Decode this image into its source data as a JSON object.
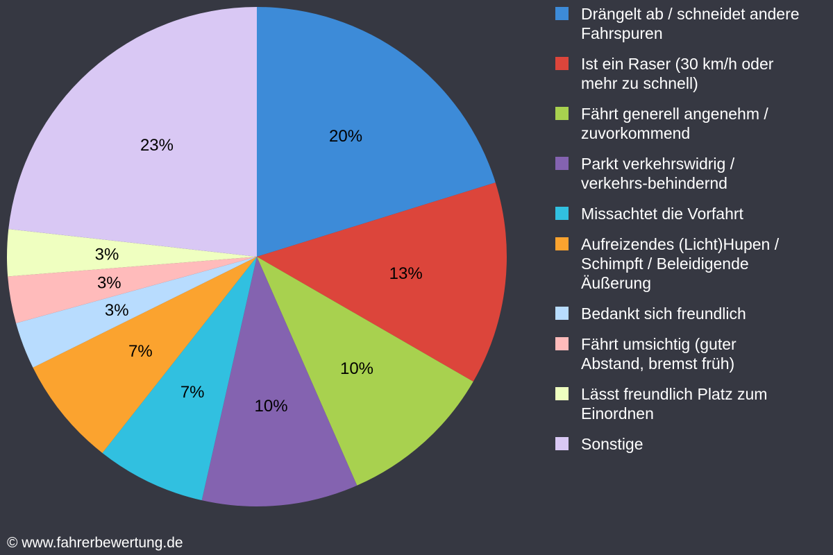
{
  "chart_data": {
    "type": "pie",
    "title": "",
    "start_angle_deg": 0,
    "direction": "clockwise",
    "categories": [
      "Drängelt ab / schneidet andere Fahrspuren",
      "Ist ein Raser (30 km/h oder mehr zu schnell)",
      "Fährt generell angenehm / zuvorkommend",
      "Parkt verkehrswidrig / verkehrs-behindernd",
      "Missachtet die Vorfahrt",
      "Aufreizendes (Licht)Hupen / Schimpft / Beleidigende Äußerung",
      "Bedankt sich freundlich",
      "Fährt umsichtig (guter Abstand, bremst früh)",
      "Lässt freundlich Platz zum Einordnen",
      "Sonstige"
    ],
    "values": [
      20,
      13,
      10,
      10,
      7,
      7,
      3,
      3,
      3,
      23
    ],
    "value_labels": [
      "20%",
      "13%",
      "10%",
      "10%",
      "7%",
      "7%",
      "3%",
      "3%",
      "3%",
      "23%"
    ],
    "colors": [
      "#3d8bd8",
      "#dc453b",
      "#a8d14f",
      "#8463b0",
      "#31c0e0",
      "#fba32f",
      "#b8dcfe",
      "#ffbbbb",
      "#efffc0",
      "#d9c8f4"
    ],
    "legend_position": "right"
  },
  "legend": {
    "items": [
      {
        "label": "Drängelt ab / schneidet andere\nFahrspuren",
        "color": "#3d8bd8"
      },
      {
        "label": "Ist ein Raser (30 km/h oder\nmehr zu schnell)",
        "color": "#dc453b"
      },
      {
        "label": "Fährt generell angenehm /\nzuvorkommend",
        "color": "#a8d14f"
      },
      {
        "label": "Parkt verkehrswidrig /\nverkehrs-behindernd",
        "color": "#8463b0"
      },
      {
        "label": "Missachtet die Vorfahrt",
        "color": "#31c0e0"
      },
      {
        "label": "Aufreizendes (Licht)Hupen /\nSchimpft / Beleidigende\nÄußerung",
        "color": "#fba32f"
      },
      {
        "label": "Bedankt sich freundlich",
        "color": "#b8dcfe"
      },
      {
        "label": "Fährt umsichtig (guter\nAbstand, bremst früh)",
        "color": "#ffbbbb"
      },
      {
        "label": "Lässt freundlich Platz zum\nEinordnen",
        "color": "#efffc0"
      },
      {
        "label": "Sonstige",
        "color": "#d9c8f4"
      }
    ]
  },
  "footer": {
    "copyright": "© www.fahrerbewertung.de"
  }
}
